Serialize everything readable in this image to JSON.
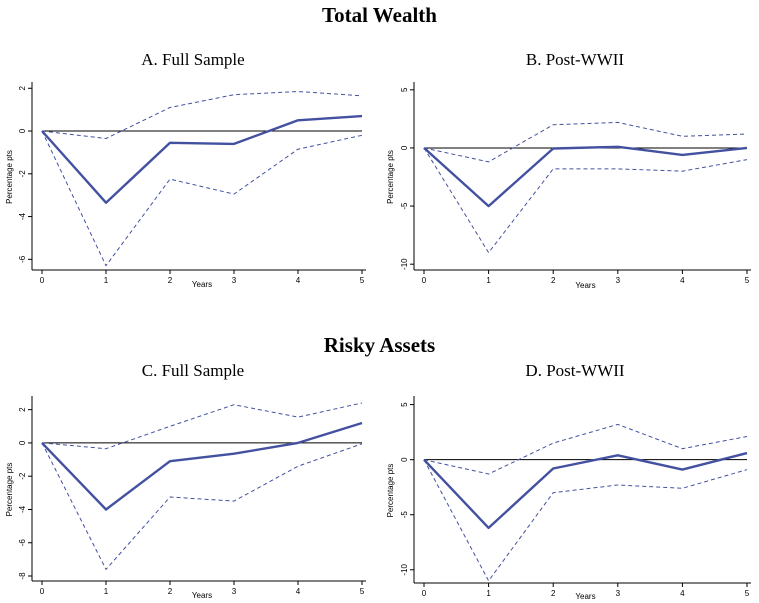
{
  "headings": {
    "top": "Total Wealth",
    "bottom": "Risky Assets"
  },
  "colors": {
    "estimate": "#4351a0",
    "band": "#4351a0",
    "zero_line": "#000000"
  },
  "chart_data": [
    {
      "type": "line",
      "title": "A. Full Sample",
      "xlabel": "Years",
      "ylabel": "Percentage pts",
      "x": [
        0,
        1,
        2,
        3,
        4,
        5
      ],
      "xlim": [
        0,
        5
      ],
      "ylim": [
        -6.5,
        2.2
      ],
      "yticks": [
        2,
        0,
        -2,
        -4,
        -6
      ],
      "xticks": [
        0,
        1,
        2,
        3,
        4,
        5
      ],
      "grid": false,
      "series": [
        {
          "role": "estimate",
          "values": [
            0,
            -3.35,
            -0.55,
            -0.6,
            0.5,
            0.7
          ]
        },
        {
          "role": "upper",
          "values": [
            0,
            -0.35,
            1.1,
            1.7,
            1.85,
            1.65
          ]
        },
        {
          "role": "lower",
          "values": [
            0,
            -6.3,
            -2.25,
            -2.95,
            -0.85,
            -0.2
          ]
        }
      ]
    },
    {
      "type": "line",
      "title": "B. Post-WWII",
      "xlabel": "Years",
      "ylabel": "Percentage pts",
      "x": [
        0,
        1,
        2,
        3,
        4,
        5
      ],
      "xlim": [
        0,
        5
      ],
      "ylim": [
        -10.5,
        5.5
      ],
      "yticks": [
        5,
        0,
        -5,
        -10
      ],
      "xticks": [
        0,
        1,
        2,
        3,
        4,
        5
      ],
      "grid": false,
      "series": [
        {
          "role": "estimate",
          "values": [
            0,
            -5.0,
            -0.05,
            0.1,
            -0.6,
            0.0
          ]
        },
        {
          "role": "upper",
          "values": [
            0,
            -1.2,
            2.0,
            2.2,
            1.0,
            1.2
          ]
        },
        {
          "role": "lower",
          "values": [
            0,
            -9.0,
            -1.8,
            -1.8,
            -2.0,
            -1.0
          ]
        }
      ]
    },
    {
      "type": "line",
      "title": "C. Full Sample",
      "xlabel": "Years",
      "ylabel": "Percentage pts",
      "x": [
        0,
        1,
        2,
        3,
        4,
        5
      ],
      "xlim": [
        0,
        5
      ],
      "ylim": [
        -8.3,
        2.7
      ],
      "yticks": [
        2,
        0,
        -2,
        -4,
        -6,
        -8
      ],
      "xticks": [
        0,
        1,
        2,
        3,
        4,
        5
      ],
      "grid": false,
      "series": [
        {
          "role": "estimate",
          "values": [
            0,
            -4.0,
            -1.1,
            -0.65,
            0.0,
            1.2
          ]
        },
        {
          "role": "upper",
          "values": [
            0,
            -0.35,
            1.0,
            2.3,
            1.55,
            2.4
          ]
        },
        {
          "role": "lower",
          "values": [
            0,
            -7.6,
            -3.25,
            -3.5,
            -1.4,
            -0.05
          ]
        }
      ]
    },
    {
      "type": "line",
      "title": "D. Post-WWII",
      "xlabel": "Years",
      "ylabel": "Percentage pts",
      "x": [
        0,
        1,
        2,
        3,
        4,
        5
      ],
      "xlim": [
        0,
        5
      ],
      "ylim": [
        -11.2,
        5.6
      ],
      "yticks": [
        5,
        0,
        -5,
        -10
      ],
      "xticks": [
        0,
        1,
        2,
        3,
        4,
        5
      ],
      "grid": false,
      "series": [
        {
          "role": "estimate",
          "values": [
            0,
            -6.2,
            -0.8,
            0.4,
            -0.9,
            0.6
          ]
        },
        {
          "role": "upper",
          "values": [
            0,
            -1.3,
            1.5,
            3.2,
            1.0,
            2.1
          ]
        },
        {
          "role": "lower",
          "values": [
            0,
            -11.0,
            -3.0,
            -2.3,
            -2.6,
            -0.9
          ]
        }
      ]
    }
  ]
}
